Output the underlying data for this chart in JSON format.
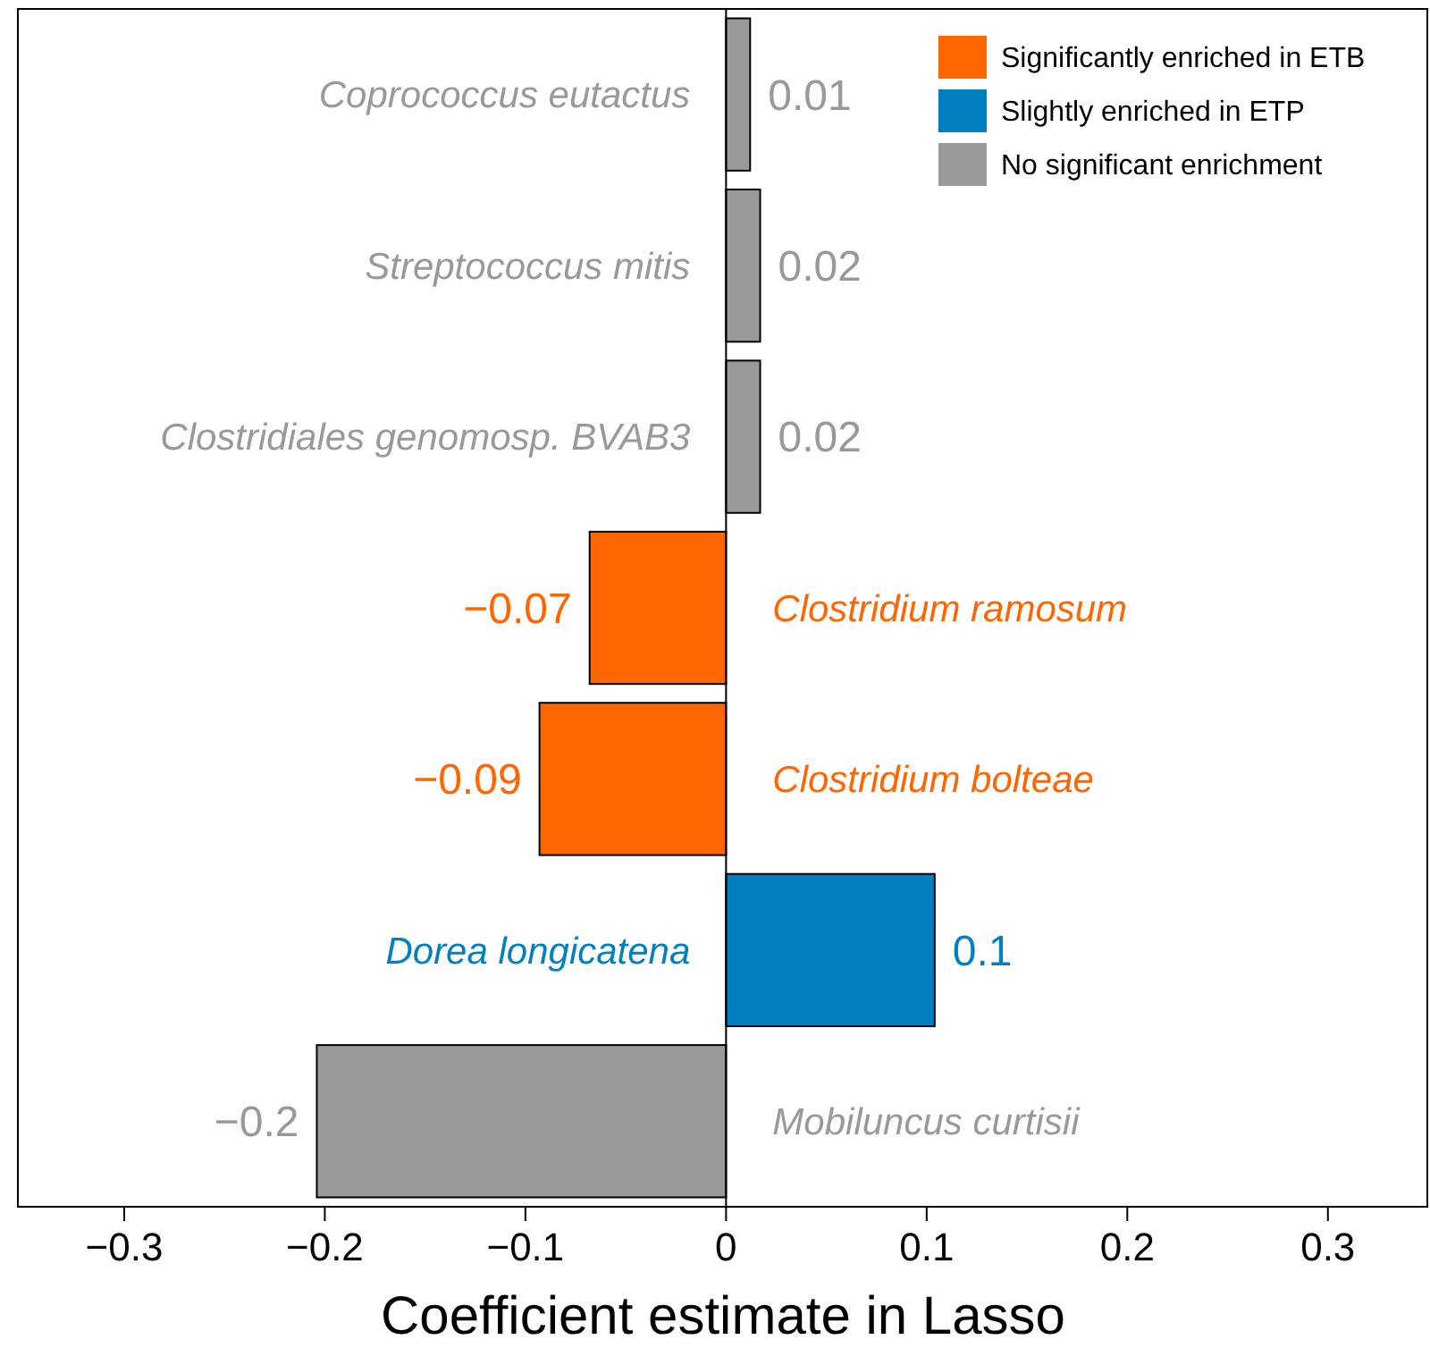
{
  "chart_data": {
    "type": "bar",
    "orientation": "horizontal",
    "xlabel": "Coefficient estimate in Lasso",
    "categories": [
      "Coprococcus eutactus",
      "Streptococcus mitis",
      "Clostridiales genomosp. BVAB3",
      "Clostridium ramosum",
      "Clostridium bolteae",
      "Dorea longicatena",
      "Mobiluncus curtisii"
    ],
    "series": [
      {
        "name": "Significantly enriched in ETB",
        "color": "#ff6600",
        "values": [
          null,
          null,
          null,
          -0.068,
          -0.093,
          null,
          null
        ],
        "value_labels": [
          null,
          null,
          null,
          "−0.07",
          "−0.09",
          null,
          null
        ]
      },
      {
        "name": "Slightly enriched in ETP",
        "color": "#0080c0",
        "values": [
          null,
          null,
          null,
          null,
          null,
          0.104,
          null
        ],
        "value_labels": [
          null,
          null,
          null,
          null,
          null,
          "0.1",
          null
        ]
      },
      {
        "name": "No significant enrichment",
        "color": "#999999",
        "values": [
          0.012,
          0.017,
          0.017,
          null,
          null,
          null,
          -0.204
        ],
        "value_labels": [
          "0.01",
          "0.02",
          "0.02",
          null,
          null,
          null,
          "−0.2"
        ]
      }
    ],
    "xlim": [
      -0.353,
      0.35
    ],
    "xticks": [
      {
        "value": -0.3,
        "label": "−0.3"
      },
      {
        "value": -0.2,
        "label": "−0.2"
      },
      {
        "value": -0.1,
        "label": "−0.1"
      },
      0,
      0.1,
      0.2,
      0.3
    ],
    "grid": false,
    "legend": "top right"
  }
}
